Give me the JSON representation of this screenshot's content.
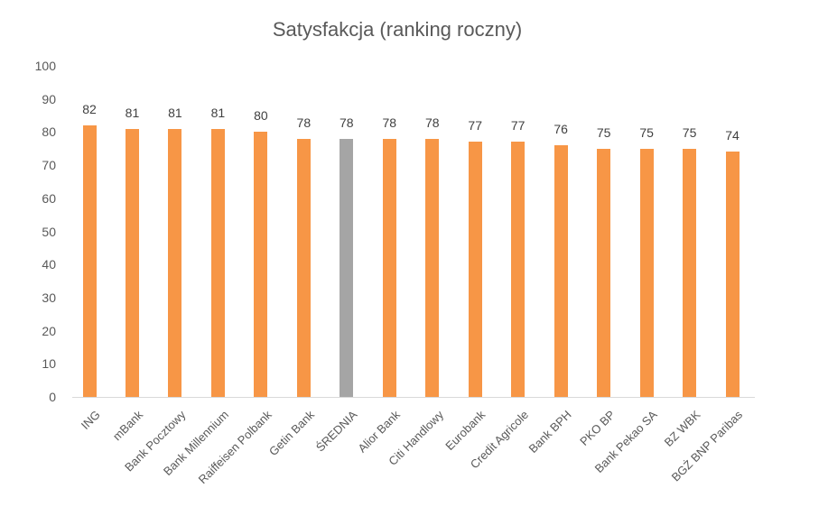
{
  "chart_data": {
    "type": "bar",
    "title": "Satysfakcja (ranking roczny)",
    "xlabel": "",
    "ylabel": "",
    "ylim": [
      0,
      100
    ],
    "yticks": [
      0,
      10,
      20,
      30,
      40,
      50,
      60,
      70,
      80,
      90,
      100
    ],
    "grid": false,
    "legend": null,
    "categories": [
      "ING",
      "mBank",
      "Bank Pocztowy",
      "Bank Millennium",
      "Raiffeisen Polbank",
      "Getin Bank",
      "ŚREDNIA",
      "Alior Bank",
      "Citi Handlowy",
      "Eurobank",
      "Credit Agricole",
      "Bank BPH",
      "PKO BP",
      "Bank Pekao SA",
      "BZ WBK",
      "BGŻ BNP Paribas"
    ],
    "values": [
      82,
      81,
      81,
      81,
      80,
      78,
      78,
      78,
      78,
      77,
      77,
      76,
      75,
      75,
      75,
      74
    ],
    "highlight_index": 6,
    "colors": {
      "bar": "#f79646",
      "highlight": "#a5a5a5",
      "axis": "#d9d9d9",
      "text": "#595959"
    }
  }
}
